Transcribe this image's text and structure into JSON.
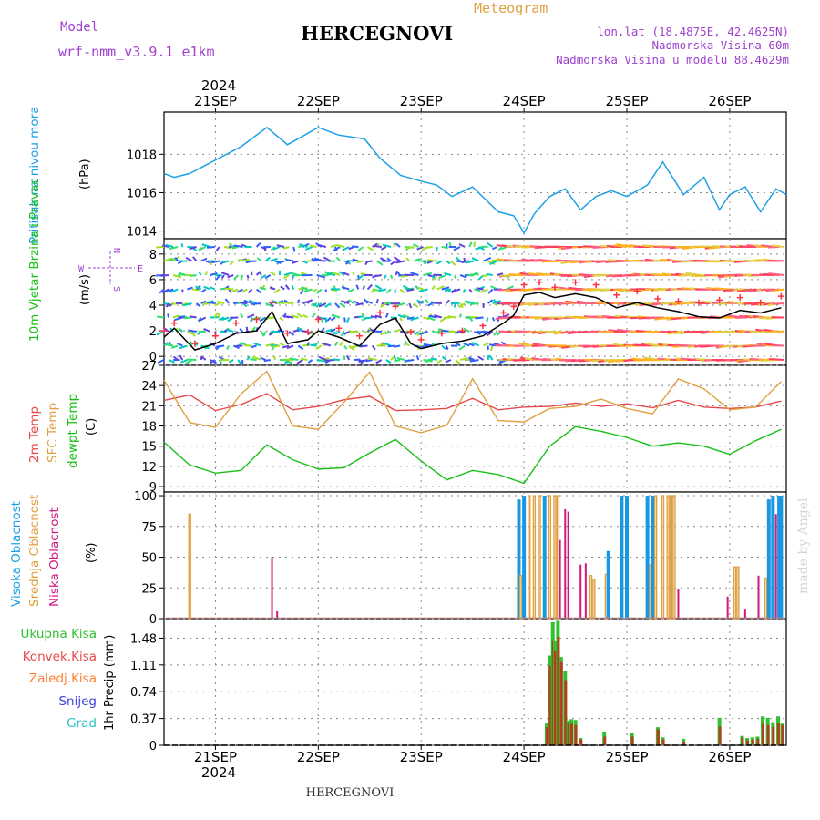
{
  "header": {
    "model_label": "Model",
    "model_name": "wrf-nmm_v3.9.1 e1km",
    "station": "HERCEGNOVI",
    "meteogram": "Meteogram",
    "lonlat": "lon,lat (18.4875E, 42.4625N)",
    "altitude": "Nadmorska Visina 60m",
    "model_altitude": "Nadmorska Visina u modelu 88.4629m",
    "watermark": "made by Angel",
    "footer": "HERCEGNOVI"
  },
  "colors": {
    "pressure": "#1ea0e6",
    "wind_speed": "#000000",
    "wind_gust": "#ff3040",
    "temp2m": "#e84848",
    "sfc_temp": "#e0a040",
    "dewpoint": "#18c018",
    "cloud_high": "#1898e0",
    "cloud_mid": "#e0a040",
    "cloud_low": "#d01880",
    "precip_total": "#30c030",
    "precip_conv": "#e84848",
    "precip_frozen": "#ff8030",
    "snow": "#4040e0",
    "hail": "#30c0c0"
  },
  "chart_data": [
    {
      "type": "line",
      "panel": "pressure",
      "ylabel": "Pritisak na nivou mora",
      "unit": "(hPa)",
      "yticks": [
        1014,
        1016,
        1018
      ],
      "ylim": [
        1013.6,
        1020.2
      ],
      "x_days": [
        20.5,
        20.6,
        20.75,
        21.0,
        21.25,
        21.5,
        21.7,
        22.0,
        22.2,
        22.45,
        22.6,
        22.8,
        23.0,
        23.15,
        23.3,
        23.5,
        23.75,
        23.9,
        24.0,
        24.1,
        24.25,
        24.4,
        24.55,
        24.7,
        24.85,
        25.0,
        25.2,
        25.35,
        25.55,
        25.75,
        25.9,
        26.0,
        26.15,
        26.3,
        26.45,
        26.55
      ],
      "values": [
        1017.0,
        1016.8,
        1017.0,
        1017.7,
        1018.4,
        1019.4,
        1018.5,
        1019.4,
        1019.0,
        1018.8,
        1017.8,
        1016.9,
        1016.6,
        1016.4,
        1015.8,
        1016.3,
        1015.0,
        1014.8,
        1013.9,
        1014.9,
        1015.8,
        1016.2,
        1015.1,
        1015.8,
        1016.1,
        1015.8,
        1016.4,
        1017.6,
        1015.9,
        1016.8,
        1015.1,
        1015.9,
        1016.3,
        1015.0,
        1016.2,
        1015.9
      ]
    },
    {
      "type": "line",
      "panel": "wind",
      "ylabel": "10m Vjetar Brzina i Pravac",
      "unit": "(m/s)",
      "compass": [
        "W",
        "E",
        "N",
        "S"
      ],
      "yticks": [
        0,
        2,
        4,
        6,
        8
      ],
      "ylim": [
        -0.7,
        9.2
      ],
      "x_days": [
        20.5,
        20.6,
        20.8,
        21.0,
        21.2,
        21.4,
        21.55,
        21.7,
        21.9,
        22.0,
        22.2,
        22.4,
        22.6,
        22.75,
        22.9,
        23.0,
        23.2,
        23.4,
        23.6,
        23.8,
        23.9,
        24.0,
        24.15,
        24.3,
        24.5,
        24.7,
        24.9,
        25.1,
        25.3,
        25.5,
        25.7,
        25.9,
        26.1,
        26.3,
        26.5
      ],
      "series": [
        {
          "name": "speed",
          "values": [
            1.5,
            2.2,
            0.5,
            1.0,
            1.8,
            2.0,
            3.5,
            1.0,
            1.3,
            2.0,
            1.5,
            0.8,
            2.5,
            3.0,
            1.0,
            0.6,
            1.0,
            1.2,
            1.6,
            2.6,
            3.2,
            4.8,
            5.0,
            4.6,
            4.9,
            4.6,
            3.8,
            4.2,
            3.8,
            3.5,
            3.1,
            3.0,
            3.6,
            3.4,
            3.8
          ]
        },
        {
          "name": "gust",
          "values": [
            2.0,
            2.6,
            1.0,
            1.6,
            2.6,
            2.9,
            4.2,
            1.8,
            1.9,
            2.9,
            2.2,
            1.6,
            3.4,
            3.9,
            1.9,
            1.3,
            1.8,
            2.0,
            2.4,
            3.4,
            3.9,
            5.6,
            5.8,
            5.4,
            5.8,
            5.6,
            4.8,
            5.1,
            4.5,
            4.3,
            4.2,
            4.4,
            4.6,
            4.2,
            4.7
          ]
        }
      ]
    },
    {
      "type": "line",
      "panel": "temperature",
      "ylabels": [
        "2m Temp",
        "SFC Temp",
        "dewpt Temp"
      ],
      "unit": "(C)",
      "yticks": [
        9,
        12,
        15,
        18,
        21,
        24,
        27
      ],
      "ylim": [
        8.2,
        27
      ],
      "x_days": [
        20.5,
        20.75,
        21.0,
        21.25,
        21.5,
        21.75,
        22.0,
        22.25,
        22.5,
        22.75,
        23.0,
        23.25,
        23.5,
        23.75,
        24.0,
        24.25,
        24.5,
        24.75,
        25.0,
        25.25,
        25.5,
        25.75,
        26.0,
        26.25,
        26.5
      ],
      "series": [
        {
          "name": "2m Temp",
          "values": [
            21.8,
            22.6,
            20.3,
            21.2,
            22.8,
            20.4,
            20.9,
            21.9,
            22.4,
            20.3,
            20.4,
            20.6,
            22.1,
            20.4,
            20.8,
            20.9,
            21.4,
            20.9,
            21.3,
            20.7,
            21.8,
            20.8,
            20.6,
            20.8,
            21.7
          ]
        },
        {
          "name": "SFC Temp",
          "values": [
            24.8,
            18.5,
            17.8,
            22.8,
            26.1,
            18.0,
            17.5,
            21.5,
            26.0,
            18.0,
            17.0,
            18.1,
            25.0,
            18.8,
            18.6,
            20.6,
            20.9,
            22.0,
            20.6,
            19.8,
            25.0,
            23.5,
            20.4,
            20.8,
            24.6
          ]
        },
        {
          "name": "dewpt Temp",
          "values": [
            15.6,
            12.2,
            11.0,
            11.4,
            15.2,
            13.0,
            11.6,
            11.8,
            14.0,
            16.0,
            12.8,
            10.0,
            11.4,
            10.8,
            9.5,
            15.0,
            17.9,
            17.2,
            16.3,
            15.0,
            15.5,
            15.0,
            13.8,
            15.8,
            17.5
          ]
        }
      ]
    },
    {
      "type": "bar",
      "panel": "clouds",
      "ylabels": [
        "Visoka Oblacnost",
        "Srednja Oblacnost",
        "Niska Oblacnost"
      ],
      "unit": "(%)",
      "yticks": [
        0,
        25,
        50,
        75,
        100
      ],
      "ylim": [
        0,
        103
      ],
      "bars": [
        [
          20.75,
          "mid",
          85
        ],
        [
          21.55,
          "low",
          50
        ],
        [
          21.6,
          "low",
          6
        ],
        [
          23.95,
          "high",
          97
        ],
        [
          23.97,
          "mid",
          35
        ],
        [
          24.0,
          "high",
          100
        ],
        [
          24.05,
          "mid",
          100
        ],
        [
          24.1,
          "mid",
          100
        ],
        [
          24.15,
          "mid",
          100
        ],
        [
          24.2,
          "high",
          100
        ],
        [
          24.25,
          "mid",
          100
        ],
        [
          24.3,
          "mid",
          100
        ],
        [
          24.33,
          "mid",
          100
        ],
        [
          24.35,
          "low",
          64
        ],
        [
          24.4,
          "low",
          89
        ],
        [
          24.43,
          "low",
          87
        ],
        [
          24.55,
          "low",
          44
        ],
        [
          24.6,
          "low",
          45
        ],
        [
          24.65,
          "mid",
          35
        ],
        [
          24.68,
          "mid",
          32
        ],
        [
          24.8,
          "mid",
          36
        ],
        [
          24.82,
          "high",
          55
        ],
        [
          24.95,
          "high",
          100
        ],
        [
          25.0,
          "high",
          100
        ],
        [
          25.2,
          "high",
          100
        ],
        [
          25.23,
          "mid",
          44
        ],
        [
          25.25,
          "high",
          100
        ],
        [
          25.28,
          "mid",
          100
        ],
        [
          25.35,
          "mid",
          100
        ],
        [
          25.4,
          "mid",
          100
        ],
        [
          25.43,
          "mid",
          100
        ],
        [
          25.46,
          "mid",
          100
        ],
        [
          25.5,
          "low",
          24
        ],
        [
          25.98,
          "low",
          18
        ],
        [
          26.05,
          "mid",
          42
        ],
        [
          26.08,
          "mid",
          42
        ],
        [
          26.15,
          "low",
          8
        ],
        [
          26.28,
          "low",
          35
        ],
        [
          26.35,
          "mid",
          33
        ],
        [
          26.38,
          "high",
          97
        ],
        [
          26.42,
          "high",
          100
        ],
        [
          26.45,
          "low",
          85
        ],
        [
          26.48,
          "high",
          100
        ],
        [
          26.5,
          "high",
          100
        ]
      ]
    },
    {
      "type": "bar",
      "panel": "precipitation",
      "legend": [
        "Ukupna Kisa",
        "Konvek.Kisa",
        "Zaledj.Kisa",
        "Snijeg",
        "Grad"
      ],
      "ylabel": "1hr Precip (mm)",
      "yticks": [
        0,
        0.37,
        0.74,
        1.11,
        1.48
      ],
      "ylim": [
        0,
        1.75
      ],
      "x_days": [
        24.22,
        24.25,
        24.28,
        24.3,
        24.33,
        24.36,
        24.4,
        24.43,
        24.46,
        24.5,
        24.55,
        24.78,
        25.05,
        25.3,
        25.35,
        25.55,
        25.9,
        26.12,
        26.17,
        26.22,
        26.27,
        26.32,
        26.37,
        26.42,
        26.47,
        26.51
      ],
      "series": [
        {
          "name": "Ukupna Kisa",
          "values": [
            0.3,
            1.24,
            1.7,
            1.45,
            1.72,
            1.22,
            1.03,
            0.34,
            0.36,
            0.35,
            0.1,
            0.19,
            0.17,
            0.25,
            0.11,
            0.09,
            0.38,
            0.13,
            0.1,
            0.11,
            0.12,
            0.4,
            0.38,
            0.32,
            0.4,
            0.3
          ]
        },
        {
          "name": "Konvek.Kisa",
          "values": [
            0.25,
            1.1,
            1.45,
            1.3,
            1.5,
            1.15,
            0.9,
            0.3,
            0.3,
            0.28,
            0.08,
            0.12,
            0.12,
            0.22,
            0.08,
            0.05,
            0.26,
            0.11,
            0.07,
            0.08,
            0.09,
            0.3,
            0.28,
            0.25,
            0.3,
            0.28
          ]
        }
      ]
    }
  ],
  "axis": {
    "year": "2024",
    "day_labels": [
      "21SEP",
      "22SEP",
      "23SEP",
      "24SEP",
      "25SEP",
      "26SEP"
    ],
    "x_days": [
      21,
      22,
      23,
      24,
      25,
      26
    ],
    "xlim": [
      20.5,
      26.55
    ]
  }
}
